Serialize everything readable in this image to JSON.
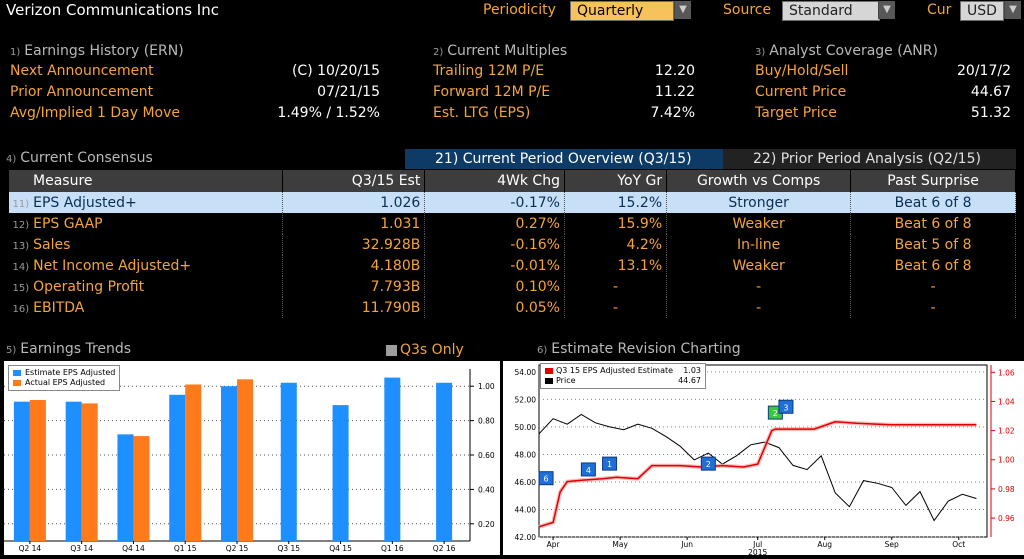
{
  "header": {
    "company": "Verizon Communications Inc",
    "periodicity_label": "Periodicity",
    "periodicity_value": "Quarterly",
    "source_label": "Source",
    "source_value": "Standard",
    "cur_label": "Cur",
    "cur_value": "USD"
  },
  "earnings_history": {
    "index": "1)",
    "title": "Earnings History (ERN)",
    "rows": [
      {
        "label": "Next Announcement",
        "value": "(C)  10/20/15"
      },
      {
        "label": "Prior Announcement",
        "value": "07/21/15"
      },
      {
        "label": "Avg/Implied 1 Day Move",
        "value": "1.49% / 1.52%"
      }
    ]
  },
  "current_multiples": {
    "index": "2)",
    "title": "Current Multiples",
    "rows": [
      {
        "label": "Trailing 12M P/E",
        "value": "12.20"
      },
      {
        "label": "Forward 12M P/E",
        "value": "11.22"
      },
      {
        "label": "Est. LTG (EPS)",
        "value": "7.42%"
      }
    ]
  },
  "analyst_coverage": {
    "index": "3)",
    "title": "Analyst Coverage (ANR)",
    "rows": [
      {
        "label": "Buy/Hold/Sell",
        "value": "20/17/2"
      },
      {
        "label": "Current Price",
        "value": "44.67"
      },
      {
        "label": "Target Price",
        "value": "51.32"
      }
    ]
  },
  "consensus": {
    "index": "4)",
    "title": "Current Consensus",
    "tab_current": "21) Current Period Overview (Q3/15)",
    "tab_prior": "22) Prior Period Analysis (Q2/15)",
    "columns": [
      "Measure",
      "Q3/15 Est",
      "4Wk Chg",
      "YoY Gr",
      "Growth vs Comps",
      "Past Surprise"
    ],
    "rows": [
      {
        "idx": "11)",
        "measure": "EPS Adjusted+",
        "est": "1.026",
        "chg": "-0.17%",
        "yoy": "15.2%",
        "growth": "Stronger",
        "surprise": "Beat 6 of 8"
      },
      {
        "idx": "12)",
        "measure": "EPS GAAP",
        "est": "1.031",
        "chg": "0.27%",
        "yoy": "15.9%",
        "growth": "Weaker",
        "surprise": "Beat 6 of 8"
      },
      {
        "idx": "13)",
        "measure": "Sales",
        "est": "32.928B",
        "chg": "-0.16%",
        "yoy": "4.2%",
        "growth": "In-line",
        "surprise": "Beat 5 of 8"
      },
      {
        "idx": "14)",
        "measure": "Net Income Adjusted+",
        "est": "4.180B",
        "chg": "-0.01%",
        "yoy": "13.1%",
        "growth": "Weaker",
        "surprise": "Beat 6 of 8"
      },
      {
        "idx": "15)",
        "measure": "Operating Profit",
        "est": "7.793B",
        "chg": "0.10%",
        "yoy": "-",
        "growth": "-",
        "surprise": "-"
      },
      {
        "idx": "16)",
        "measure": "EBITDA",
        "est": "11.790B",
        "chg": "0.05%",
        "yoy": "-",
        "growth": "-",
        "surprise": "-"
      }
    ]
  },
  "earnings_trends": {
    "index": "5)",
    "title": "Earnings Trends",
    "q3_only_label": "Q3s Only",
    "legend_estimate": "Estimate EPS Adjusted",
    "legend_actual": "Actual EPS Adjusted",
    "y_ticks": [
      "1.00",
      "0.80",
      "0.60",
      "0.40",
      "0.20"
    ]
  },
  "estimate_revision": {
    "index": "6)",
    "title": "Estimate Revision Charting",
    "legend_estimate": "Q3 15 EPS Adjusted Estimate",
    "legend_estimate_value": "1.03",
    "legend_price": "Price",
    "legend_price_value": "44.67",
    "left_ticks": [
      "54.00",
      "52.00",
      "50.00",
      "48.00",
      "46.00",
      "44.00",
      "42.00"
    ],
    "right_ticks": [
      "1.06",
      "1.04",
      "1.02",
      "1.00",
      "0.98",
      "0.96"
    ],
    "x_ticks": [
      "Apr",
      "May",
      "Jun",
      "Jul",
      "Aug",
      "Sep",
      "Oct"
    ],
    "year": "2015",
    "markers": [
      "6",
      "4",
      "1",
      "2",
      "2",
      "3"
    ]
  },
  "chart_data": [
    {
      "type": "bar",
      "categories": [
        "Q2 14",
        "Q3 14",
        "Q4 14",
        "Q1 15",
        "Q2 15",
        "Q3 15",
        "Q4 15",
        "Q1 16",
        "Q2 16"
      ],
      "series": [
        {
          "name": "Estimate EPS Adjusted",
          "values": [
            0.91,
            0.91,
            0.72,
            0.95,
            1.0,
            1.02,
            0.89,
            1.05,
            1.02
          ],
          "color": "#1e8fff"
        },
        {
          "name": "Actual EPS Adjusted",
          "values": [
            0.92,
            0.9,
            0.71,
            1.01,
            1.04,
            null,
            null,
            null,
            null
          ],
          "color": "#ff7a1a"
        }
      ],
      "ylim": [
        0.1,
        1.1
      ],
      "y_ticks": [
        0.2,
        0.4,
        0.6,
        0.8,
        1.0
      ]
    },
    {
      "type": "line",
      "x_ticks": [
        "Apr",
        "May",
        "Jun",
        "Jul",
        "Aug",
        "Sep",
        "Oct"
      ],
      "series": [
        {
          "name": "Q3 15 EPS Adjusted Estimate",
          "axis": "right",
          "color": "#e00000",
          "x": [
            0,
            0.2,
            0.3,
            0.4,
            0.6,
            0.9,
            1.1,
            1.4,
            1.6,
            2.0,
            2.3,
            2.6,
            2.9,
            3.1,
            3.3,
            3.35,
            3.5,
            3.9,
            4.2,
            4.5,
            5.0,
            5.5,
            6.0,
            6.2
          ],
          "y": [
            0.954,
            0.957,
            0.978,
            0.985,
            0.986,
            0.987,
            0.988,
            0.987,
            0.996,
            0.996,
            0.995,
            0.996,
            0.995,
            0.997,
            1.02,
            1.021,
            1.021,
            1.021,
            1.026,
            1.025,
            1.024,
            1.024,
            1.024,
            1.024
          ]
        },
        {
          "name": "Price",
          "axis": "left",
          "color": "#000000",
          "x": [
            0,
            0.2,
            0.4,
            0.6,
            0.8,
            1.0,
            1.2,
            1.4,
            1.6,
            1.8,
            2.0,
            2.2,
            2.4,
            2.6,
            2.8,
            3.0,
            3.2,
            3.4,
            3.6,
            3.8,
            4.0,
            4.2,
            4.4,
            4.6,
            4.8,
            5.0,
            5.2,
            5.4,
            5.6,
            5.8,
            6.0,
            6.2
          ],
          "y": [
            49.5,
            50.6,
            50.2,
            50.9,
            50.3,
            50.0,
            49.8,
            50.2,
            49.9,
            49.3,
            48.6,
            47.6,
            48.1,
            47.3,
            47.9,
            48.7,
            48.9,
            48.5,
            47.2,
            46.9,
            47.9,
            45.2,
            44.2,
            46.1,
            45.9,
            45.6,
            44.3,
            45.3,
            43.2,
            44.6,
            45.1,
            44.8
          ]
        }
      ],
      "ylim_left": [
        42,
        54.5
      ],
      "ylim_right": [
        0.947,
        1.065
      ]
    }
  ]
}
